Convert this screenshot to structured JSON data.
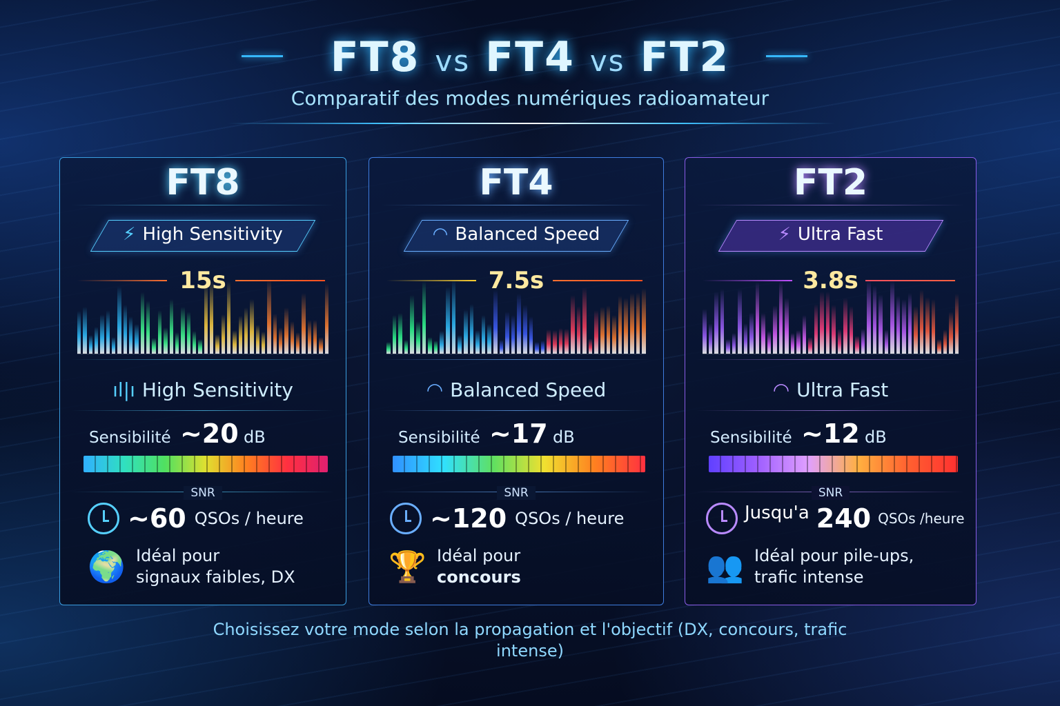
{
  "header": {
    "title_parts": [
      "FT8",
      "vs",
      "FT4",
      "vs",
      "FT2"
    ],
    "subtitle": "Comparatif des modes numériques radioamateur"
  },
  "cards": [
    {
      "name": "FT8",
      "badge": "High Sensitivity",
      "badge_icon": "lightning-icon",
      "cycle": "15s",
      "feature": "High Sensitivity",
      "feature_icon": "signal-icon",
      "sens_label": "Sensibilité",
      "sens_value": "~20",
      "sens_unit": "dB",
      "snr": "SNR",
      "qso_prefix": "",
      "qso_value": "~60",
      "qso_unit": "QSOs / heure",
      "ideal_line1": "Idéal pour",
      "ideal_line2": "signaux faibles, DX",
      "ideal_icon": "globe-icon",
      "accent": "#56d0ff"
    },
    {
      "name": "FT4",
      "badge": "Balanced Speed",
      "badge_icon": "gauge-icon",
      "cycle": "7.5s",
      "feature": "Balanced Speed",
      "feature_icon": "gauge-icon",
      "sens_label": "Sensibilité",
      "sens_value": "~17",
      "sens_unit": "dB",
      "snr": "SNR",
      "qso_prefix": "",
      "qso_value": "~120",
      "qso_unit": "QSOs / heure",
      "ideal_line1": "Idéal pour",
      "ideal_line2": "concours",
      "ideal_icon": "trophy-icon",
      "accent": "#6aaeff"
    },
    {
      "name": "FT2",
      "badge": "Ultra Fast",
      "badge_icon": "lightning-icon",
      "cycle": "3.8s",
      "feature": "Ultra Fast",
      "feature_icon": "gauge-icon",
      "sens_label": "Sensibilité",
      "sens_value": "~12",
      "sens_unit": "dB",
      "snr": "SNR",
      "qso_prefix": "Jusqu'a",
      "qso_value": "240",
      "qso_unit": "QSOs /heure",
      "ideal_line1": "Idéal pour pile-ups,",
      "ideal_line2": "trafic intense",
      "ideal_icon": "group-icon",
      "accent": "#b98aff"
    }
  ],
  "footer": "Choisissez votre mode selon la propagation et l'objectif (DX, concours, trafic intense)"
}
